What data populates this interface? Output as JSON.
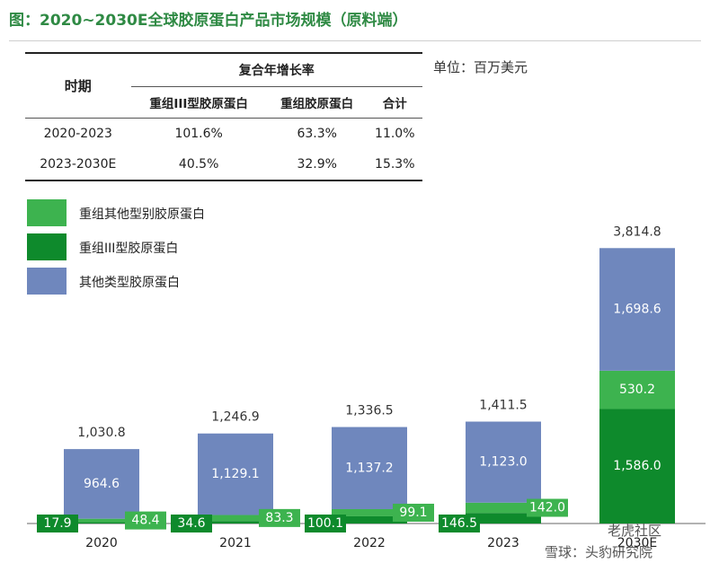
{
  "title": "图：2020~2030E全球胶原蛋白产品市场规模（原料端）",
  "unit": "单位：百万美元",
  "table": {
    "period_header": "时期",
    "cagr_header": "复合年增长率",
    "columns": [
      "重组III型胶原蛋白",
      "重组胶原蛋白",
      "合计"
    ],
    "rows": [
      {
        "period": "2020-2023",
        "values": [
          "101.6%",
          "63.3%",
          "11.0%"
        ]
      },
      {
        "period": "2023-2030E",
        "values": [
          "40.5%",
          "32.9%",
          "15.3%"
        ]
      }
    ]
  },
  "legend": [
    {
      "label": "重组其他型别胶原蛋白",
      "color": "#3db34f"
    },
    {
      "label": "重组III型胶原蛋白",
      "color": "#0e8a2c"
    },
    {
      "label": "其他类型胶原蛋白",
      "color": "#6f87bd"
    }
  ],
  "chart_data": {
    "type": "bar",
    "stacked": true,
    "categories": [
      "2020",
      "2021",
      "2022",
      "2023",
      "2030E"
    ],
    "series": [
      {
        "name": "重组III型胶原蛋白",
        "values": [
          17.9,
          34.6,
          100.1,
          146.5,
          1586.0
        ],
        "labels": [
          "17.9",
          "34.6",
          "100.1",
          "146.5",
          "1,586.0"
        ],
        "color": "#0e8a2c"
      },
      {
        "name": "重组其他型别胶原蛋白",
        "values": [
          48.4,
          83.3,
          99.1,
          142.0,
          530.2
        ],
        "labels": [
          "48.4",
          "83.3",
          "99.1",
          "142.0",
          "530.2"
        ],
        "color": "#3db34f"
      },
      {
        "name": "其他类型胶原蛋白",
        "values": [
          964.6,
          1129.1,
          1137.2,
          1123.0,
          1698.6
        ],
        "labels": [
          "964.6",
          "1,129.1",
          "1,137.2",
          "1,123.0",
          "1,698.6"
        ],
        "color": "#6f87bd"
      }
    ],
    "totals": [
      "1,030.8",
      "1,246.9",
      "1,336.5",
      "1,411.5",
      "3,814.8"
    ],
    "ylim": [
      0,
      4000
    ]
  },
  "watermarks": {
    "bottom_right_1": "老虎社区",
    "bottom_right_2": "雪球：头豹研究院"
  }
}
